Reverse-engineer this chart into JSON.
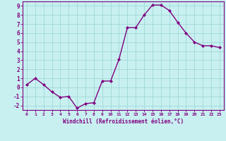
{
  "x": [
    0,
    1,
    2,
    3,
    4,
    5,
    6,
    7,
    8,
    9,
    10,
    11,
    12,
    13,
    14,
    15,
    16,
    17,
    18,
    19,
    20,
    21,
    22,
    23
  ],
  "y": [
    0.3,
    1.0,
    0.3,
    -0.5,
    -1.1,
    -1.0,
    -2.3,
    -1.8,
    -1.7,
    0.7,
    0.7,
    3.1,
    6.6,
    6.6,
    8.0,
    9.1,
    9.1,
    8.5,
    7.2,
    6.0,
    5.0,
    4.6,
    4.6,
    4.4
  ],
  "line_color": "#800080",
  "marker": "D",
  "marker_size": 2,
  "bg_color": "#c8f0f0",
  "grid_color": "#a0d8d8",
  "xlabel": "Windchill (Refroidissement éolien,°C)",
  "xlim": [
    -0.5,
    23.5
  ],
  "ylim": [
    -2.5,
    9.5
  ],
  "xtick_labels": [
    "0",
    "1",
    "2",
    "3",
    "4",
    "5",
    "6",
    "7",
    "8",
    "9",
    "10",
    "11",
    "12",
    "13",
    "14",
    "15",
    "16",
    "17",
    "18",
    "19",
    "20",
    "21",
    "22",
    "23"
  ],
  "ytick_values": [
    -2,
    -1,
    0,
    1,
    2,
    3,
    4,
    5,
    6,
    7,
    8,
    9
  ],
  "purple": "#800080"
}
